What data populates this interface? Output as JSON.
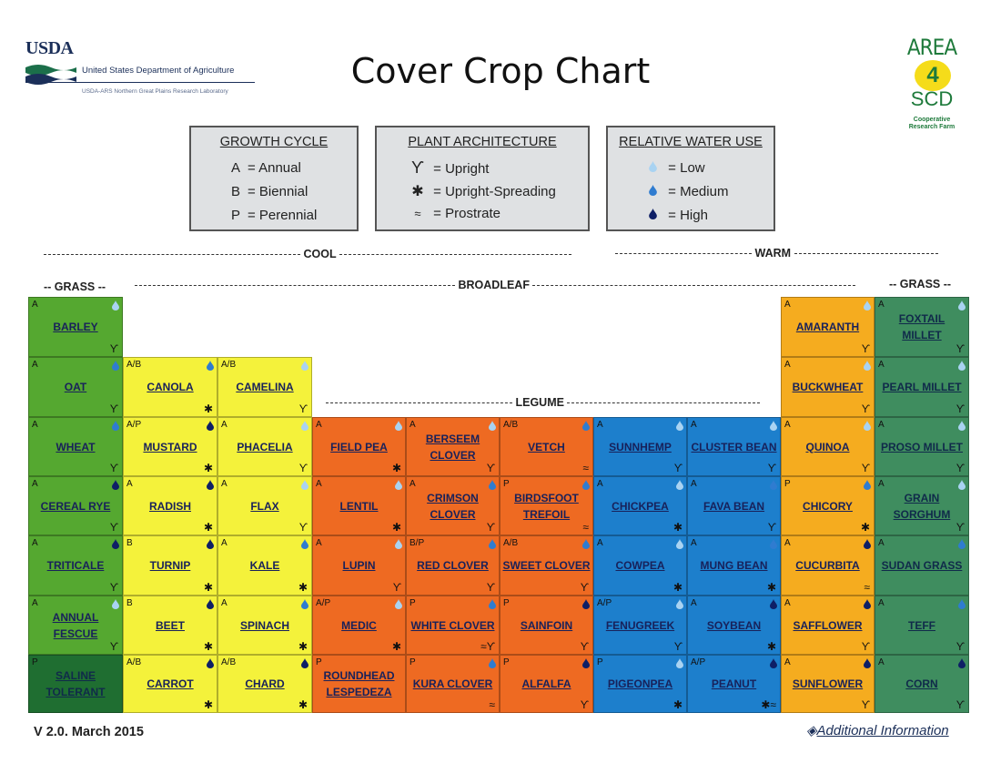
{
  "header": {
    "usda_word": "USDA",
    "usda_name": "United States Department of Agriculture",
    "usda_sub": "USDA-ARS Northern Great Plains Research Laboratory",
    "title": "Cover Crop Chart",
    "area_word": "AREA",
    "area_num": "4",
    "area_scd": "SCD",
    "area_coop": "Cooperative Research Farm"
  },
  "legend": {
    "growth_cycle": {
      "title": "GROWTH CYCLE",
      "rows": [
        [
          "A",
          "= Annual"
        ],
        [
          "B",
          "= Biennial"
        ],
        [
          "P",
          "= Perennial"
        ]
      ]
    },
    "plant_architecture": {
      "title": "PLANT ARCHITECTURE",
      "rows": [
        [
          "upright-icon",
          "= Upright"
        ],
        [
          "upright-spreading-icon",
          "= Upright-Spreading"
        ],
        [
          "prostrate-icon",
          "= Prostrate"
        ]
      ]
    },
    "water_use": {
      "title": "RELATIVE WATER USE",
      "rows": [
        [
          "low-water-drop-icon",
          "= Low"
        ],
        [
          "medium-water-drop-icon",
          "= Medium"
        ],
        [
          "high-water-drop-icon",
          "= High"
        ]
      ]
    }
  },
  "dividers": {
    "cool": "COOL",
    "warm": "WARM",
    "grass": "-- GRASS --",
    "broadleaf": "BROADLEAF",
    "legume": "LEGUME"
  },
  "colors": {
    "water_low": "#a9d3f2",
    "water_medium": "#2f7cd0",
    "water_high": "#0e1f66",
    "cool_grass": "#55a830",
    "saline": "#1f6e31",
    "brassica": "#f4f23b",
    "cool_legume": "#ee6a22",
    "warm_legume": "#1d7fcc",
    "warm_broadleaf": "#f5ac1f",
    "warm_grass": "#3f8d5f"
  },
  "crops": [
    {
      "name": "BARLEY",
      "cycle": "A",
      "water": "low",
      "arch": "upright",
      "color": "lg"
    },
    {
      "name": "OAT",
      "cycle": "A",
      "water": "medium",
      "arch": "upright",
      "color": "lg"
    },
    {
      "name": "WHEAT",
      "cycle": "A",
      "water": "medium",
      "arch": "upright",
      "color": "lg"
    },
    {
      "name": "CEREAL RYE",
      "cycle": "A",
      "water": "high",
      "arch": "upright",
      "color": "lg"
    },
    {
      "name": "TRITICALE",
      "cycle": "A",
      "water": "high",
      "arch": "upright",
      "color": "lg"
    },
    {
      "name": "ANNUAL FESCUE",
      "cycle": "A",
      "water": "low",
      "arch": "upright",
      "color": "lg"
    },
    {
      "name": "SALINE TOLERANT",
      "cycle": "P",
      "water": "",
      "arch": "",
      "color": "dg"
    },
    {
      "name": "CANOLA",
      "cycle": "A/B",
      "water": "medium",
      "arch": "upright-spreading",
      "color": "y"
    },
    {
      "name": "MUSTARD",
      "cycle": "A/P",
      "water": "high",
      "arch": "upright-spreading",
      "color": "y"
    },
    {
      "name": "RADISH",
      "cycle": "A",
      "water": "high",
      "arch": "upright-spreading",
      "color": "y"
    },
    {
      "name": "TURNIP",
      "cycle": "B",
      "water": "high",
      "arch": "upright-spreading",
      "color": "y"
    },
    {
      "name": "BEET",
      "cycle": "B",
      "water": "high",
      "arch": "upright-spreading",
      "color": "y"
    },
    {
      "name": "CARROT",
      "cycle": "A/B",
      "water": "high",
      "arch": "upright-spreading",
      "color": "y"
    },
    {
      "name": "CAMELINA",
      "cycle": "A/B",
      "water": "low",
      "arch": "upright",
      "color": "y"
    },
    {
      "name": "PHACELIA",
      "cycle": "A",
      "water": "low",
      "arch": "upright",
      "color": "y"
    },
    {
      "name": "FLAX",
      "cycle": "A",
      "water": "low",
      "arch": "upright",
      "color": "y"
    },
    {
      "name": "KALE",
      "cycle": "A",
      "water": "medium",
      "arch": "upright-spreading",
      "color": "y"
    },
    {
      "name": "SPINACH",
      "cycle": "A",
      "water": "medium",
      "arch": "upright-spreading",
      "color": "y"
    },
    {
      "name": "CHARD",
      "cycle": "A/B",
      "water": "high",
      "arch": "upright-spreading",
      "color": "y"
    },
    {
      "name": "FIELD PEA",
      "cycle": "A",
      "water": "low",
      "arch": "upright-spreading",
      "color": "o"
    },
    {
      "name": "LENTIL",
      "cycle": "A",
      "water": "low",
      "arch": "upright-spreading",
      "color": "o"
    },
    {
      "name": "LUPIN",
      "cycle": "A",
      "water": "low",
      "arch": "upright",
      "color": "o"
    },
    {
      "name": "MEDIC",
      "cycle": "A/P",
      "water": "low",
      "arch": "upright-spreading",
      "color": "o"
    },
    {
      "name": "ROUNDHEAD LESPEDEZA",
      "cycle": "P",
      "water": "",
      "arch": "",
      "color": "o"
    },
    {
      "name": "BERSEEM CLOVER",
      "cycle": "A",
      "water": "low",
      "arch": "upright",
      "color": "o"
    },
    {
      "name": "CRIMSON CLOVER",
      "cycle": "A",
      "water": "medium",
      "arch": "upright",
      "color": "o"
    },
    {
      "name": "RED CLOVER",
      "cycle": "B/P",
      "water": "medium",
      "arch": "upright",
      "color": "o"
    },
    {
      "name": "WHITE CLOVER",
      "cycle": "P",
      "water": "medium",
      "arch": "prostrate upright",
      "color": "o"
    },
    {
      "name": "KURA CLOVER",
      "cycle": "P",
      "water": "medium",
      "arch": "prostrate",
      "color": "o"
    },
    {
      "name": "VETCH",
      "cycle": "A/B",
      "water": "medium",
      "arch": "prostrate",
      "color": "o"
    },
    {
      "name": "BIRDSFOOT TREFOIL",
      "cycle": "P",
      "water": "medium",
      "arch": "prostrate",
      "color": "o"
    },
    {
      "name": "SWEET CLOVER",
      "cycle": "A/B",
      "water": "medium",
      "arch": "upright",
      "color": "o"
    },
    {
      "name": "SAINFOIN",
      "cycle": "P",
      "water": "high",
      "arch": "upright",
      "color": "o"
    },
    {
      "name": "ALFALFA",
      "cycle": "P",
      "water": "high",
      "arch": "upright",
      "color": "o"
    },
    {
      "name": "SUNNHEMP",
      "cycle": "A",
      "water": "low",
      "arch": "upright",
      "color": "b"
    },
    {
      "name": "CHICKPEA",
      "cycle": "A",
      "water": "low",
      "arch": "upright-spreading",
      "color": "b"
    },
    {
      "name": "COWPEA",
      "cycle": "A",
      "water": "low",
      "arch": "upright-spreading",
      "color": "b"
    },
    {
      "name": "FENUGREEK",
      "cycle": "A/P",
      "water": "low",
      "arch": "upright",
      "color": "b"
    },
    {
      "name": "PIGEONPEA",
      "cycle": "P",
      "water": "low",
      "arch": "upright-spreading",
      "color": "b"
    },
    {
      "name": "CLUSTER BEAN",
      "cycle": "A",
      "water": "low",
      "arch": "upright",
      "color": "b"
    },
    {
      "name": "FAVA BEAN",
      "cycle": "A",
      "water": "medium",
      "arch": "upright",
      "color": "b"
    },
    {
      "name": "MUNG BEAN",
      "cycle": "A",
      "water": "medium",
      "arch": "upright-spreading",
      "color": "b"
    },
    {
      "name": "SOYBEAN",
      "cycle": "A",
      "water": "high",
      "arch": "upright-spreading",
      "color": "b"
    },
    {
      "name": "PEANUT",
      "cycle": "A/P",
      "water": "high",
      "arch": "upright-spreading prostrate",
      "color": "b"
    },
    {
      "name": "AMARANTH",
      "cycle": "A",
      "water": "low",
      "arch": "upright",
      "color": "a"
    },
    {
      "name": "BUCKWHEAT",
      "cycle": "A",
      "water": "low",
      "arch": "upright",
      "color": "a"
    },
    {
      "name": "QUINOA",
      "cycle": "A",
      "water": "low",
      "arch": "upright",
      "color": "a"
    },
    {
      "name": "CHICORY",
      "cycle": "P",
      "water": "medium",
      "arch": "upright-spreading",
      "color": "a"
    },
    {
      "name": "CUCURBITA",
      "cycle": "A",
      "water": "high",
      "arch": "prostrate",
      "color": "a"
    },
    {
      "name": "SAFFLOWER",
      "cycle": "A",
      "water": "high",
      "arch": "upright",
      "color": "a"
    },
    {
      "name": "SUNFLOWER",
      "cycle": "A",
      "water": "high",
      "arch": "upright",
      "color": "a"
    },
    {
      "name": "FOXTAIL MILLET",
      "cycle": "A",
      "water": "low",
      "arch": "upright",
      "color": "g"
    },
    {
      "name": "PEARL MILLET",
      "cycle": "A",
      "water": "low",
      "arch": "upright",
      "color": "g"
    },
    {
      "name": "PROSO MILLET",
      "cycle": "A",
      "water": "low",
      "arch": "upright",
      "color": "g"
    },
    {
      "name": "GRAIN SORGHUM",
      "cycle": "A",
      "water": "low",
      "arch": "upright",
      "color": "g"
    },
    {
      "name": "SUDAN GRASS",
      "cycle": "A",
      "water": "medium",
      "arch": "",
      "color": "g"
    },
    {
      "name": "TEFF",
      "cycle": "A",
      "water": "medium",
      "arch": "upright",
      "color": "g"
    },
    {
      "name": "CORN",
      "cycle": "A",
      "water": "high",
      "arch": "upright",
      "color": "g"
    }
  ],
  "footer": {
    "version": "V 2.0.  March 2015",
    "info_icon": "diamond-icon",
    "info_label": "Additional Information"
  }
}
